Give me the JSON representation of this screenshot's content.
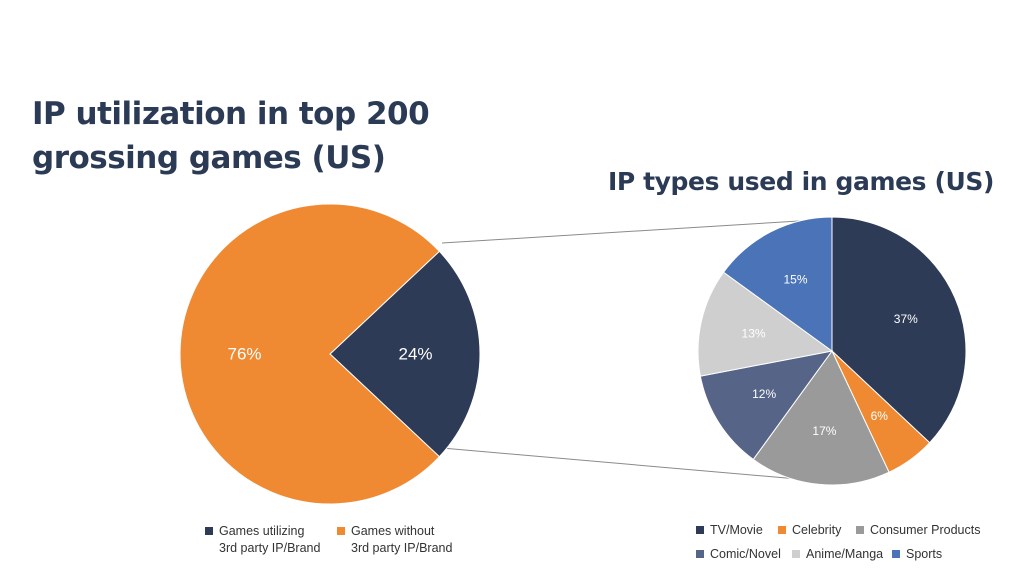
{
  "chart_data": [
    {
      "type": "pie",
      "title": [
        "IP utilization in top 200",
        "grossing games (US)"
      ],
      "slices": [
        {
          "label": [
            "Games utilizing",
            "3rd party IP/Brand"
          ],
          "value": 24,
          "value_label": "24%",
          "color": "#2e3b56"
        },
        {
          "label": [
            "Games without",
            "3rd party IP/Brand"
          ],
          "value": 76,
          "value_label": "76%",
          "color": "#f08a32"
        }
      ],
      "legend_position": "bottom"
    },
    {
      "type": "pie",
      "title": "IP types used in games (US)",
      "slices": [
        {
          "label": "TV/Movie",
          "value": 37,
          "value_label": "37%",
          "color": "#2e3b56"
        },
        {
          "label": "Celebrity",
          "value": 6,
          "value_label": "6%",
          "color": "#f08a32"
        },
        {
          "label": "Consumer Products",
          "value": 17,
          "value_label": "17%",
          "color": "#9a9a9a"
        },
        {
          "label": "Comic/Novel",
          "value": 12,
          "value_label": "12%",
          "color": "#566488"
        },
        {
          "label": "Anime/Manga",
          "value": 13,
          "value_label": "13%",
          "color": "#cfcfcf"
        },
        {
          "label": "Sports",
          "value": 15,
          "value_label": "15%",
          "color": "#4a73b8"
        }
      ],
      "legend_position": "bottom"
    }
  ]
}
